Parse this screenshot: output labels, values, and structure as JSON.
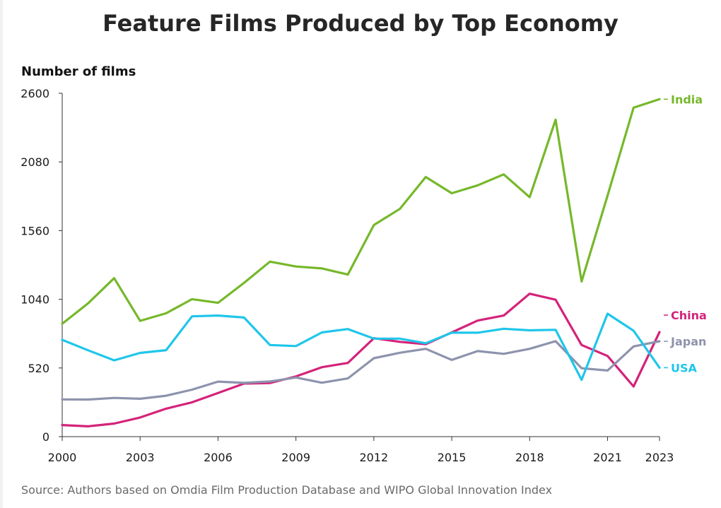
{
  "chart_data": {
    "type": "line",
    "title": "Feature Films Produced by Top Economy",
    "ylabel": "Number of films",
    "source": "Source: Authors based on Omdia Film Production Database and WIPO Global Innovation Index",
    "ylim": [
      0,
      2600
    ],
    "yticks": [
      0,
      520,
      1040,
      1560,
      2080,
      2600
    ],
    "xlim": [
      2000,
      2023
    ],
    "xticks": [
      2000,
      2003,
      2006,
      2009,
      2012,
      2015,
      2018,
      2021,
      2023
    ],
    "x": [
      2000,
      2001,
      2002,
      2003,
      2004,
      2005,
      2006,
      2007,
      2008,
      2009,
      2010,
      2011,
      2012,
      2013,
      2014,
      2015,
      2016,
      2017,
      2018,
      2019,
      2020,
      2021,
      2022,
      2023
    ],
    "grid": false,
    "legend": "direct labels at line ends",
    "series": [
      {
        "name": "India",
        "color": "#76b82a",
        "values": [
          855,
          1010,
          1200,
          877,
          934,
          1041,
          1013,
          1164,
          1325,
          1288,
          1274,
          1227,
          1602,
          1724,
          1966,
          1843,
          1903,
          1986,
          1813,
          2400,
          1175,
          1825,
          2491,
          2555
        ]
      },
      {
        "name": "China",
        "color": "#d4237a",
        "values": [
          88,
          78,
          99,
          145,
          212,
          260,
          330,
          402,
          406,
          456,
          526,
          558,
          745,
          718,
          700,
          789,
          879,
          917,
          1082,
          1037,
          694,
          611,
          380,
          792
        ]
      },
      {
        "name": "Japan",
        "color": "#8e93ad",
        "values": [
          282,
          281,
          293,
          287,
          310,
          356,
          417,
          407,
          418,
          448,
          408,
          441,
          594,
          635,
          665,
          581,
          648,
          627,
          665,
          723,
          518,
          501,
          683,
          722
        ]
      },
      {
        "name": "USA",
        "color": "#1fc6ea",
        "values": [
          733,
          654,
          578,
          634,
          655,
          911,
          917,
          902,
          694,
          686,
          789,
          815,
          742,
          742,
          707,
          787,
          787,
          817,
          805,
          809,
          430,
          931,
          802,
          522
        ]
      }
    ]
  }
}
